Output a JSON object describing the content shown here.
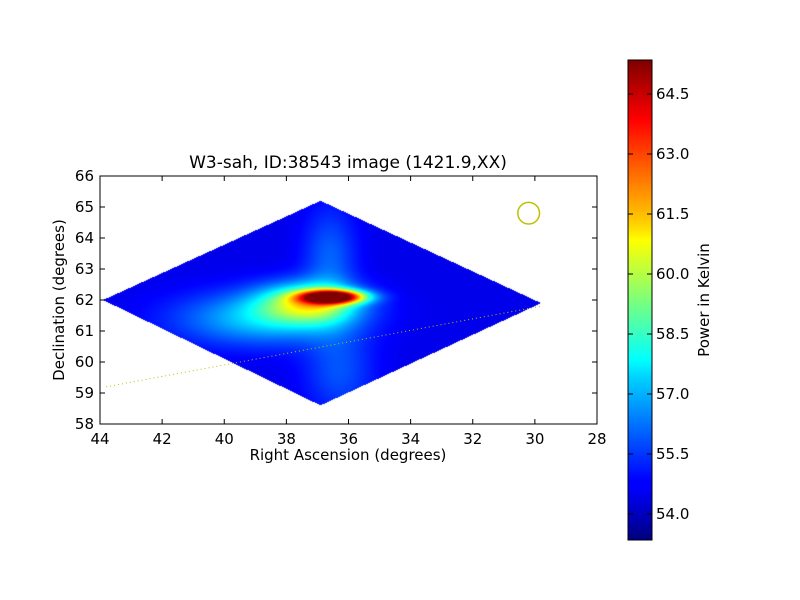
{
  "chart_data": {
    "type": "heatmap",
    "title": "W3-sah, ID:38543 image (1421.9,XX)",
    "xlabel": "Right Ascension (degrees)",
    "ylabel": "Declination (degrees)",
    "xlim": [
      44,
      28
    ],
    "ylim": [
      58,
      66
    ],
    "xticks": [
      "44",
      "42",
      "40",
      "38",
      "36",
      "34",
      "32",
      "30",
      "28"
    ],
    "yticks": [
      "58",
      "59",
      "60",
      "61",
      "62",
      "63",
      "64",
      "65",
      "66"
    ],
    "grid": false,
    "colorbar": {
      "label": "Power in Kelvin",
      "range": [
        53.35,
        65.35
      ],
      "ticks": [
        "54.0",
        "55.5",
        "57.0",
        "58.5",
        "60.0",
        "61.5",
        "63.0",
        "64.5"
      ],
      "colormap": "jet"
    },
    "image": {
      "footprint_corners_radec": [
        [
          43.9,
          62.0
        ],
        [
          36.9,
          65.2
        ],
        [
          29.8,
          61.9
        ],
        [
          36.9,
          58.6
        ]
      ],
      "background_kelvin": 54.6,
      "blobs": [
        {
          "ra": 36.5,
          "dec": 62.1,
          "peak_kelvin": 65.2,
          "ra_sigma": 0.7,
          "dec_sigma": 0.15
        },
        {
          "ra": 37.3,
          "dec": 61.9,
          "peak_kelvin": 59.5,
          "ra_sigma": 1.1,
          "dec_sigma": 0.45
        },
        {
          "ra": 38.8,
          "dec": 61.4,
          "peak_kelvin": 57.2,
          "ra_sigma": 1.9,
          "dec_sigma": 0.6
        },
        {
          "ra": 36.6,
          "dec": 63.3,
          "peak_kelvin": 56.0,
          "ra_sigma": 0.6,
          "dec_sigma": 1.2
        },
        {
          "ra": 36.3,
          "dec": 59.7,
          "peak_kelvin": 55.8,
          "ra_sigma": 0.8,
          "dec_sigma": 1.0
        }
      ]
    },
    "overlays": {
      "beam_circle": {
        "ra": 30.2,
        "dec": 64.8,
        "radius_deg": 0.35,
        "color": "#bfbf00"
      },
      "dotted_line": {
        "points": [
          [
            43.8,
            59.2
          ],
          [
            29.8,
            61.8
          ]
        ],
        "color": "#bfbf00"
      }
    }
  }
}
